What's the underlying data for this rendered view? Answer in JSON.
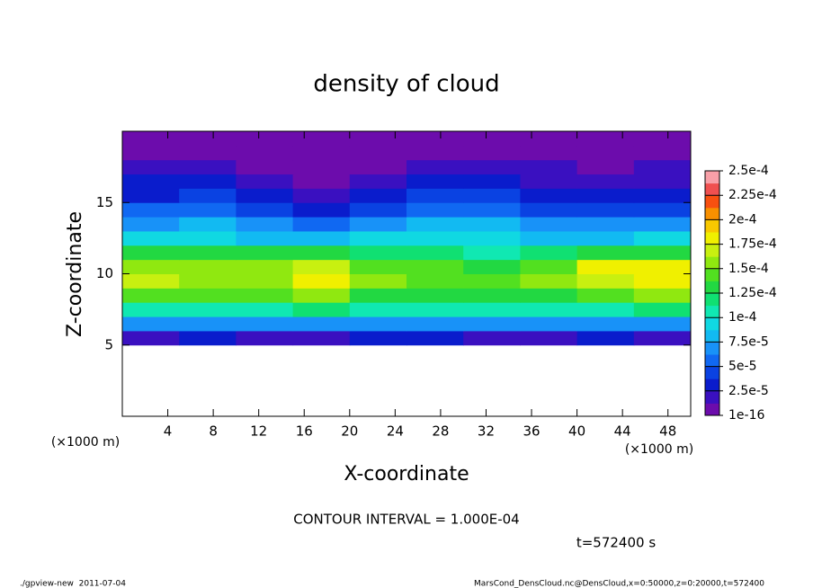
{
  "chart_data": {
    "type": "contour",
    "title": "density of cloud",
    "xlabel": "X-coordinate",
    "ylabel": "Z-coordinate",
    "xunit": "(×1000 m)",
    "yunit": "(×1000 m)",
    "xlim": [
      0,
      50
    ],
    "ylim": [
      0,
      20
    ],
    "xticks": [
      4,
      8,
      12,
      16,
      20,
      24,
      28,
      32,
      36,
      40,
      44,
      48
    ],
    "yticks": [
      5,
      10,
      15
    ],
    "x": [
      2.5,
      7.5,
      12.5,
      17.5,
      22.5,
      27.5,
      32.5,
      37.5,
      42.5,
      47.5
    ],
    "z": [
      5.5,
      6.5,
      7.5,
      8.5,
      9.5,
      10.5,
      11.5,
      12.5,
      13.5,
      14.5,
      15.5,
      16.5,
      17.5,
      18.5,
      19.5
    ],
    "values": [
      [
        2.2e-05,
        2.5e-05,
        2.4e-05,
        2.3e-05,
        2.6e-05,
        2.5e-05,
        2.4e-05,
        2.3e-05,
        2.5e-05,
        2.4e-05
      ],
      [
        6.5e-05,
        7e-05,
        6.8e-05,
        7e-05,
        6.5e-05,
        7e-05,
        6.8e-05,
        6.5e-05,
        7e-05,
        6.8e-05
      ],
      [
        0.000105,
        0.00011,
        0.00011,
        0.000115,
        0.000105,
        0.00011,
        0.000105,
        0.000105,
        0.00011,
        0.000115
      ],
      [
        0.00014,
        0.00014,
        0.00014,
        0.00015,
        0.000135,
        0.000135,
        0.00013,
        0.000135,
        0.000145,
        0.00015
      ],
      [
        0.000165,
        0.00016,
        0.00016,
        0.000175,
        0.00015,
        0.000145,
        0.00014,
        0.00015,
        0.00017,
        0.00018
      ],
      [
        0.00016,
        0.000155,
        0.000155,
        0.00017,
        0.000145,
        0.00014,
        0.000135,
        0.000145,
        0.000175,
        0.000185
      ],
      [
        0.00013,
        0.000125,
        0.000125,
        0.00013,
        0.00012,
        0.000115,
        0.00011,
        0.00012,
        0.00013,
        0.000135
      ],
      [
        9e-05,
        9e-05,
        8.5e-05,
        8.5e-05,
        9e-05,
        9.5e-05,
        9e-05,
        8.5e-05,
        8.5e-05,
        9e-05
      ],
      [
        7e-05,
        7.5e-05,
        6.5e-05,
        5.5e-05,
        6.5e-05,
        7.5e-05,
        7.5e-05,
        6.5e-05,
        6.5e-05,
        7e-05
      ],
      [
        5e-05,
        5.5e-05,
        4e-05,
        2.8e-05,
        4e-05,
        5.5e-05,
        5.5e-05,
        4.5e-05,
        4e-05,
        4.5e-05
      ],
      [
        3.5e-05,
        4e-05,
        2.8e-05,
        1.8e-05,
        2.8e-05,
        4e-05,
        4e-05,
        3.2e-05,
        2.8e-05,
        3e-05
      ],
      [
        2.5e-05,
        2.8e-05,
        1.8e-05,
        1.2e-05,
        1.8e-05,
        2.8e-05,
        2.8e-05,
        2e-05,
        1.8e-05,
        2e-05
      ],
      [
        1.6e-05,
        1.8e-05,
        1.2e-05,
        8e-06,
        1.2e-05,
        1.8e-05,
        1.8e-05,
        1.3e-05,
        1.2e-05,
        1.3e-05
      ],
      [
        1e-05,
        1.2e-05,
        8e-06,
        5e-06,
        8e-06,
        1.2e-05,
        1.2e-05,
        9e-06,
        8e-06,
        8e-06
      ],
      [
        5e-06,
        6e-06,
        5e-06,
        3e-06,
        5e-06,
        6e-06,
        6e-06,
        5e-06,
        5e-06,
        5e-06
      ]
    ],
    "colorbar_ticks": [
      1e-16,
      {
        "value": 2.5e-05,
        "label": "2.5e-5"
      },
      {
        "value": 5e-05,
        "label": "5e-5"
      },
      {
        "value": 7.5e-05,
        "label": "7.5e-5"
      },
      {
        "value": 0.0001,
        "label": "1e-4"
      },
      {
        "value": 0.000125,
        "label": "1.25e-4"
      },
      {
        "value": 0.00015,
        "label": "1.5e-4"
      },
      {
        "value": 0.000175,
        "label": "1.75e-4"
      },
      {
        "value": 0.0002,
        "label": "2e-4"
      },
      {
        "value": 0.000225,
        "label": "2.25e-4"
      },
      {
        "value": 0.00025,
        "label": "2.5e-4"
      }
    ],
    "colors": [
      "#6c0cac",
      "#3a10c0",
      "#0a1ccc",
      "#0a42e2",
      "#1068f2",
      "#1892f8",
      "#12baf2",
      "#10d8e2",
      "#10e8b2",
      "#10e072",
      "#22d842",
      "#52e020",
      "#90e810",
      "#c8f010",
      "#f0f000",
      "#f8c800",
      "#f89000",
      "#f85010",
      "#f05050",
      "#f8a0a8"
    ],
    "contour_interval_text": "CONTOUR INTERVAL = 1.000E-04",
    "time_text": "t=572400 s",
    "footer_left": "./gpview-new  2011-07-04",
    "footer_right": "MarsCond_DensCloud.nc@DensCloud,x=0:50000,z=0:20000,t=572400"
  }
}
